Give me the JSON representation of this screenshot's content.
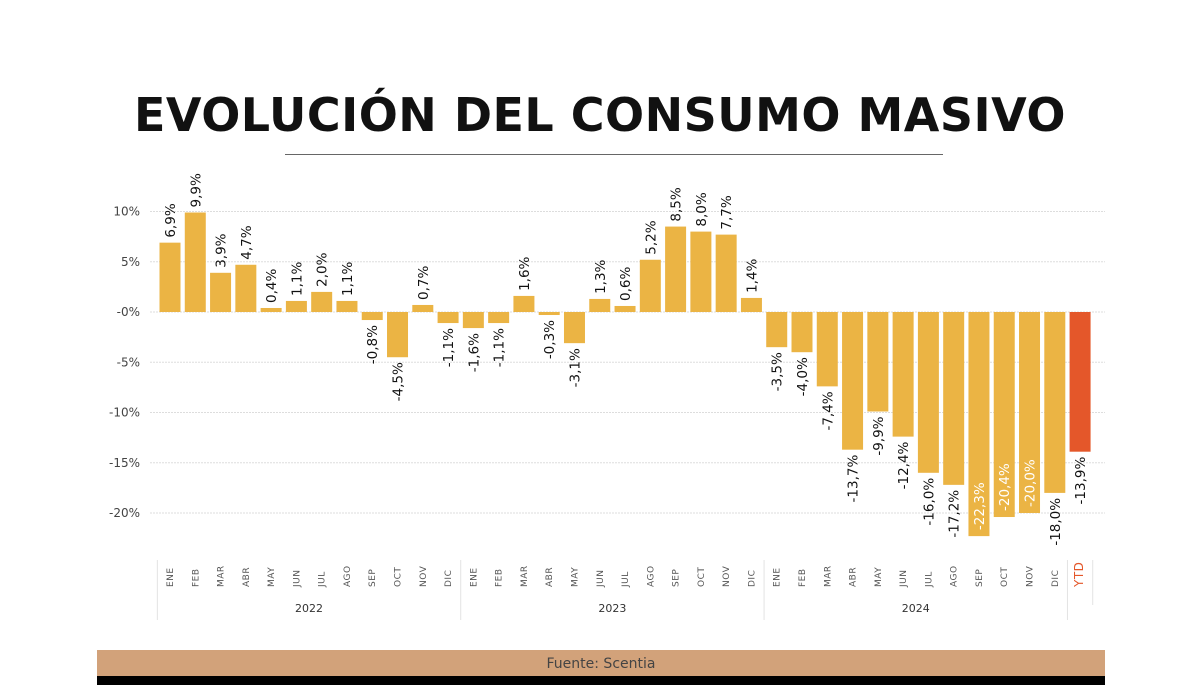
{
  "chart_data": {
    "type": "bar",
    "title": "EVOLUCIÓN DEL CONSUMO MASIVO",
    "ylabel": "",
    "xlabel": "",
    "ylim": [
      -23,
      11
    ],
    "yticks": [
      10,
      5,
      0,
      -5,
      -10,
      -15,
      -20
    ],
    "ytick_labels": [
      "10%",
      "5%",
      "-0%",
      "-5%",
      "-10%",
      "-15%",
      "-20%"
    ],
    "grid": true,
    "categories": [
      "ENE",
      "FEB",
      "MAR",
      "ABR",
      "MAY",
      "JUN",
      "JUL",
      "AGO",
      "SEP",
      "OCT",
      "NOV",
      "DIC",
      "ENE",
      "FEB",
      "MAR",
      "ABR",
      "MAY",
      "JUN",
      "JUL",
      "AGO",
      "SEP",
      "OCT",
      "NOV",
      "DIC",
      "ENE",
      "FEB",
      "MAR",
      "ABR",
      "MAY",
      "JUN",
      "JUL",
      "AGO",
      "SEP",
      "OCT",
      "NOV",
      "DIC",
      "YTD"
    ],
    "groups": [
      {
        "label": "2022",
        "count": 12
      },
      {
        "label": "2023",
        "count": 12
      },
      {
        "label": "2024",
        "count": 12
      }
    ],
    "values": [
      6.9,
      9.9,
      3.9,
      4.7,
      0.4,
      1.1,
      2.0,
      1.1,
      -0.8,
      -4.5,
      0.7,
      -1.1,
      -1.6,
      -1.1,
      1.6,
      -0.3,
      -3.1,
      1.3,
      0.6,
      5.2,
      8.5,
      8.0,
      7.7,
      1.4,
      -3.5,
      -4.0,
      -7.4,
      -13.7,
      -9.9,
      -12.4,
      -16.0,
      -17.2,
      -22.3,
      -20.4,
      -20.0,
      -18.0,
      -13.9
    ],
    "data_labels": [
      "6,9%",
      "9,9%",
      "3,9%",
      "4,7%",
      "0,4%",
      "1,1%",
      "2,0%",
      "1,1%",
      "-0,8%",
      "-4,5%",
      "0,7%",
      "-1,1%",
      "-1,6%",
      "-1,1%",
      "1,6%",
      "-0,3%",
      "-3,1%",
      "1,3%",
      "0,6%",
      "5,2%",
      "8,5%",
      "8,0%",
      "7,7%",
      "1,4%",
      "-3,5%",
      "-4,0%",
      "-7,4%",
      "-13,7%",
      "-9,9%",
      "-12,4%",
      "-16,0%",
      "-17,2%",
      "-22,3%",
      "-20,4%",
      "-20,0%",
      "-18,0%",
      "-13,9%"
    ],
    "inside_labels": [
      32,
      33,
      34
    ],
    "colors": {
      "bar": "#ebb444",
      "ytd": "#e4572a",
      "ytd_label": "#e4572a"
    }
  },
  "footer": {
    "source": "Fuente: Scentia"
  }
}
